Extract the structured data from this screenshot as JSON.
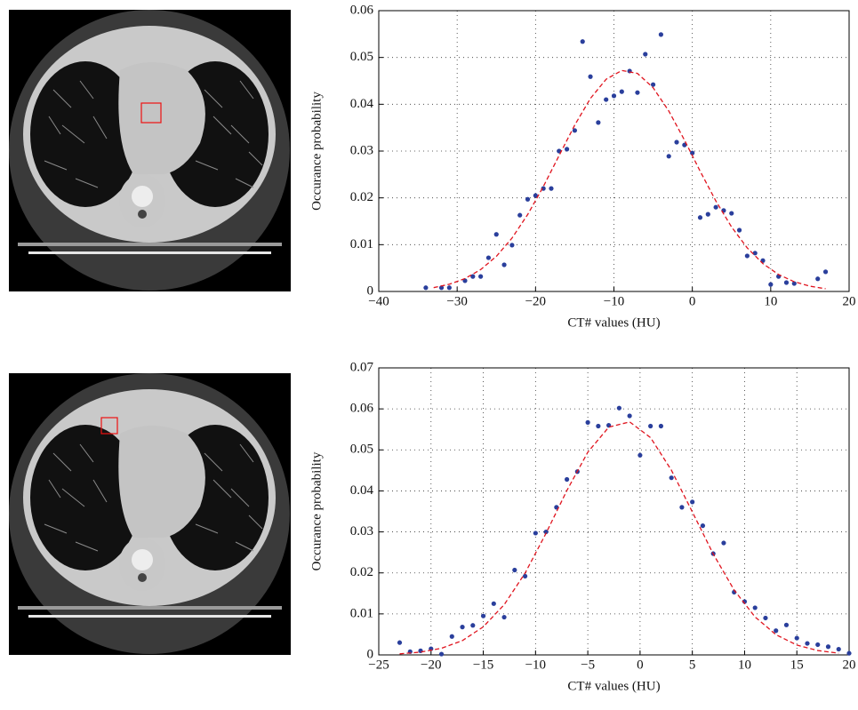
{
  "chart_data": [
    {
      "type": "scatter",
      "xlabel": "CT# values (HU)",
      "ylabel": "Occurance probability",
      "xlim": [
        -40,
        20
      ],
      "xticks": [
        {
          "value": -40,
          "label": "−40"
        },
        {
          "value": -30,
          "label": "−30"
        },
        {
          "value": -20,
          "label": "−20"
        },
        {
          "value": -10,
          "label": "−10"
        },
        0,
        10,
        20
      ],
      "ylim": [
        0,
        0.06
      ],
      "yticks": [
        0,
        0.01,
        0.02,
        0.03,
        0.04,
        0.05,
        0.06
      ],
      "grid": true,
      "series": [
        {
          "type": "scatter",
          "color": "#2a3f9c",
          "x": [
            -34,
            -32,
            -31,
            -29,
            -28,
            -27,
            -26,
            -25,
            -24,
            -23,
            -22,
            -21,
            -20,
            -19,
            -18,
            -17,
            -16,
            -15,
            -14,
            -13,
            -12,
            -11,
            -10,
            -9,
            -8,
            -7,
            -6,
            -5,
            -4,
            -3,
            -2,
            -1,
            0,
            1,
            2,
            3,
            4,
            5,
            6,
            7,
            8,
            9,
            10,
            11,
            12,
            13,
            16,
            17
          ],
          "values": [
            0.0008,
            0.0008,
            0.0008,
            0.0023,
            0.0032,
            0.0032,
            0.0072,
            0.0122,
            0.0057,
            0.0099,
            0.0163,
            0.0197,
            0.0205,
            0.022,
            0.022,
            0.03,
            0.0304,
            0.0344,
            0.0534,
            0.0459,
            0.0361,
            0.041,
            0.0418,
            0.0427,
            0.0471,
            0.0425,
            0.0507,
            0.0442,
            0.0549,
            0.0289,
            0.0319,
            0.0313,
            0.0296,
            0.0158,
            0.0165,
            0.018,
            0.0173,
            0.0167,
            0.0131,
            0.0076,
            0.0082,
            0.0066,
            0.0015,
            0.0032,
            0.0019,
            0.0017,
            0.0027,
            0.0042
          ]
        },
        {
          "type": "line",
          "color": "#e0141e",
          "line_style": "dashed",
          "x": [
            -33,
            -31,
            -29,
            -27,
            -25,
            -23,
            -21,
            -19,
            -17,
            -15,
            -13,
            -11,
            -9,
            -7,
            -5,
            -3,
            -1,
            1,
            3,
            5,
            7,
            9,
            11,
            13,
            15,
            17
          ],
          "values": [
            0.00082,
            0.00154,
            0.00276,
            0.00468,
            0.0075,
            0.01141,
            0.01645,
            0.02244,
            0.02902,
            0.03555,
            0.04125,
            0.04534,
            0.04722,
            0.04659,
            0.04354,
            0.03855,
            0.03234,
            0.02569,
            0.01934,
            0.01379,
            0.00932,
            0.00596,
            0.00362,
            0.00208,
            0.00113,
            0.00058
          ]
        }
      ]
    },
    {
      "type": "scatter",
      "xlabel": "CT# values (HU)",
      "ylabel": "Occurance probability",
      "xlim": [
        -25,
        20
      ],
      "xticks": [
        {
          "value": -25,
          "label": "−25"
        },
        {
          "value": -20,
          "label": "−20"
        },
        {
          "value": -15,
          "label": "−15"
        },
        {
          "value": -10,
          "label": "−10"
        },
        {
          "value": -5,
          "label": "−5"
        },
        0,
        5,
        10,
        15,
        20
      ],
      "ylim": [
        0,
        0.07
      ],
      "yticks": [
        0,
        0.01,
        0.02,
        0.03,
        0.04,
        0.05,
        0.06,
        0.07
      ],
      "grid": true,
      "series": [
        {
          "type": "scatter",
          "color": "#2a3f9c",
          "x": [
            -23,
            -22,
            -21,
            -20,
            -19,
            -18,
            -17,
            -16,
            -15,
            -14,
            -13,
            -12,
            -11,
            -10,
            -9,
            -8,
            -7,
            -6,
            -5,
            -4,
            -3,
            -2,
            -1,
            0,
            1,
            2,
            3,
            4,
            5,
            6,
            7,
            8,
            9,
            10,
            11,
            12,
            13,
            14,
            15,
            16,
            17,
            18,
            19,
            20
          ],
          "values": [
            0.003,
            0.0008,
            0.001,
            0.0015,
            0.0002,
            0.0045,
            0.0068,
            0.0072,
            0.0095,
            0.0125,
            0.0092,
            0.0207,
            0.0192,
            0.0297,
            0.03,
            0.036,
            0.0428,
            0.0447,
            0.0567,
            0.0558,
            0.056,
            0.0602,
            0.0583,
            0.0487,
            0.0558,
            0.0558,
            0.0432,
            0.036,
            0.0373,
            0.0315,
            0.0247,
            0.0273,
            0.0153,
            0.013,
            0.0115,
            0.009,
            0.0059,
            0.0073,
            0.0041,
            0.0028,
            0.0025,
            0.002,
            0.0014,
            0.0004
          ]
        },
        {
          "type": "line",
          "color": "#e0141e",
          "line_style": "dashed",
          "x": [
            -23,
            -21,
            -19,
            -17,
            -15,
            -13,
            -11,
            -9,
            -7,
            -5,
            -3,
            -1,
            1,
            3,
            5,
            7,
            9,
            11,
            13,
            15,
            17,
            19
          ],
          "values": [
            0.00026,
            0.00068,
            0.00162,
            0.00349,
            0.00685,
            0.01225,
            0.01996,
            0.02964,
            0.0401,
            0.04944,
            0.05553,
            0.05683,
            0.053,
            0.04504,
            0.03487,
            0.02461,
            0.01582,
            0.00926,
            0.00494,
            0.0024,
            0.00107,
            0.00043
          ]
        }
      ]
    }
  ]
}
